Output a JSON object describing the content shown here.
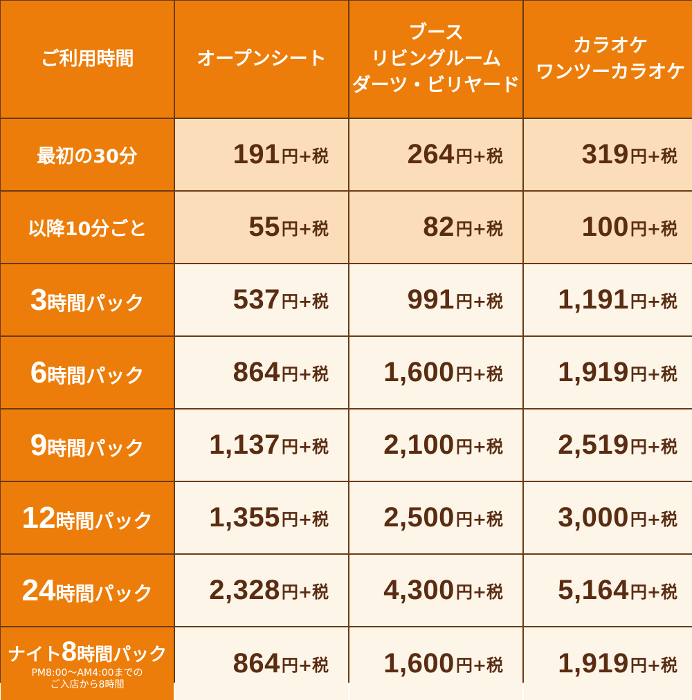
{
  "headers": {
    "time": "ご利用時間",
    "col1": [
      "オープンシート"
    ],
    "col2": [
      "ブース",
      "リビングルーム",
      "ダーツ・ビリヤード"
    ],
    "col3": [
      "カラオケ",
      "ワンツーカラオケ"
    ]
  },
  "unit": "円+税",
  "rows": [
    {
      "label": "最初の30分",
      "prices": [
        "191",
        "264",
        "319"
      ]
    },
    {
      "label": "以降10分ごと",
      "prices": [
        "55",
        "82",
        "100"
      ]
    },
    {
      "num": "3",
      "suffix": "時間パック",
      "prices": [
        "537",
        "991",
        "1,191"
      ]
    },
    {
      "num": "6",
      "suffix": "時間パック",
      "prices": [
        "864",
        "1,600",
        "1,919"
      ]
    },
    {
      "num": "9",
      "suffix": "時間パック",
      "prices": [
        "1,137",
        "2,100",
        "2,519"
      ]
    },
    {
      "num": "12",
      "suffix": "時間パック",
      "prices": [
        "1,355",
        "2,500",
        "3,000"
      ]
    },
    {
      "num": "24",
      "suffix": "時間パック",
      "prices": [
        "2,328",
        "4,300",
        "5,164"
      ]
    },
    {
      "prefix": "ナイト",
      "num": "8",
      "suffix": "時間パック",
      "note1": "PM8:00～AM4:00までの",
      "note2": "ご入店から8時間",
      "prices": [
        "864",
        "1,600",
        "1,919"
      ]
    }
  ],
  "colors": {
    "header": "#ed7d0a",
    "light": "#fbdeb9",
    "cream": "#fdf5e8",
    "text": "#5a2c12",
    "border": "#6a3a12"
  }
}
